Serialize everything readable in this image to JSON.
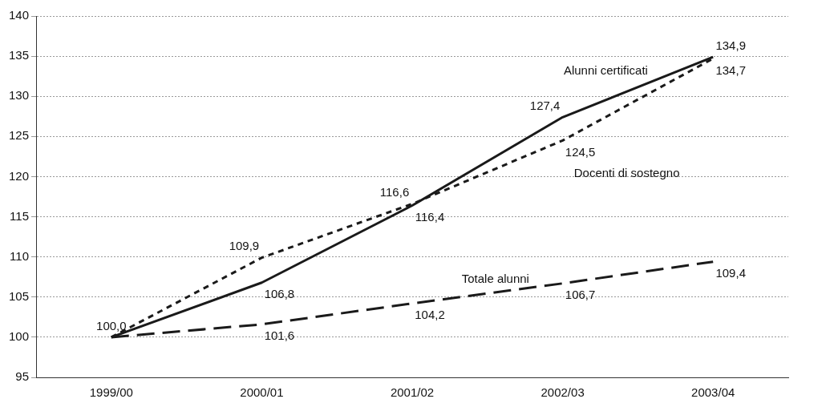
{
  "chart_data": {
    "type": "line",
    "categories": [
      "1999/00",
      "2000/01",
      "2001/02",
      "2002/03",
      "2003/04"
    ],
    "series": [
      {
        "name": "Alunni certificati",
        "color": "#1a1a1a",
        "line_style": "solid",
        "values": [
          100.0,
          106.8,
          116.4,
          127.4,
          134.9
        ],
        "value_labels": [
          "100,0",
          "106,8",
          "116,4",
          "127,4",
          "134,9"
        ]
      },
      {
        "name": "Docenti di sostegno",
        "color": "#1a1a1a",
        "line_style": "dotted",
        "values": [
          100.0,
          109.9,
          116.6,
          124.5,
          134.7
        ],
        "value_labels": [
          null,
          "109,9",
          "116,6",
          "124,5",
          "134,7"
        ]
      },
      {
        "name": "Totale alunni",
        "color": "#1a1a1a",
        "line_style": "dashed",
        "values": [
          100.0,
          101.6,
          104.2,
          106.7,
          109.4
        ],
        "value_labels": [
          null,
          "101,6",
          "104,2",
          "106,7",
          "109,4"
        ]
      }
    ],
    "ylim": [
      95,
      140
    ],
    "yticks": [
      95,
      100,
      105,
      110,
      115,
      120,
      125,
      130,
      135,
      140
    ],
    "grid": "y",
    "legend": false,
    "marker": "none"
  }
}
